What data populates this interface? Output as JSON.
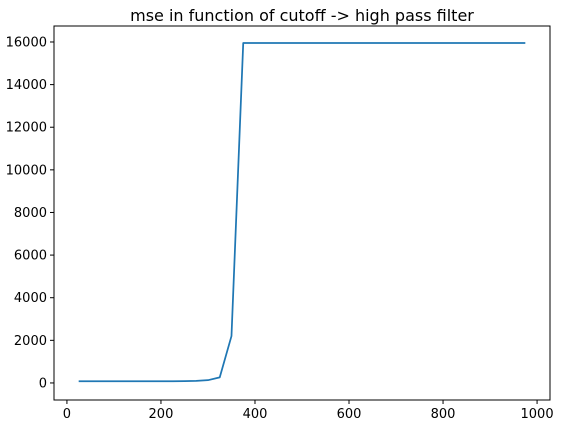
{
  "chart_data": {
    "type": "line",
    "title": "mse in function of cutoff -> high pass filter",
    "xlabel": "",
    "ylabel": "",
    "xlim": [
      -27.5,
      1027.5
    ],
    "ylim": [
      -800,
      16750
    ],
    "xticks": [
      0,
      200,
      400,
      600,
      800,
      1000
    ],
    "yticks": [
      0,
      2000,
      4000,
      6000,
      8000,
      10000,
      12000,
      14000,
      16000
    ],
    "grid": false,
    "series": [
      {
        "name": "mse",
        "color": "#1f77b4",
        "x": [
          25,
          50,
          75,
          100,
          125,
          150,
          175,
          200,
          225,
          250,
          275,
          300,
          325,
          350,
          375,
          400,
          425,
          450,
          475,
          500,
          525,
          550,
          575,
          600,
          625,
          650,
          675,
          700,
          725,
          750,
          775,
          800,
          825,
          850,
          875,
          900,
          925,
          950,
          975
        ],
        "y": [
          80,
          80,
          80,
          80,
          80,
          80,
          80,
          80,
          80,
          85,
          95,
          130,
          260,
          2200,
          15950,
          15950,
          15950,
          15950,
          15950,
          15950,
          15950,
          15950,
          15950,
          15950,
          15950,
          15950,
          15950,
          15950,
          15950,
          15950,
          15950,
          15950,
          15950,
          15950,
          15950,
          15950,
          15950,
          15950,
          15950
        ]
      }
    ]
  }
}
